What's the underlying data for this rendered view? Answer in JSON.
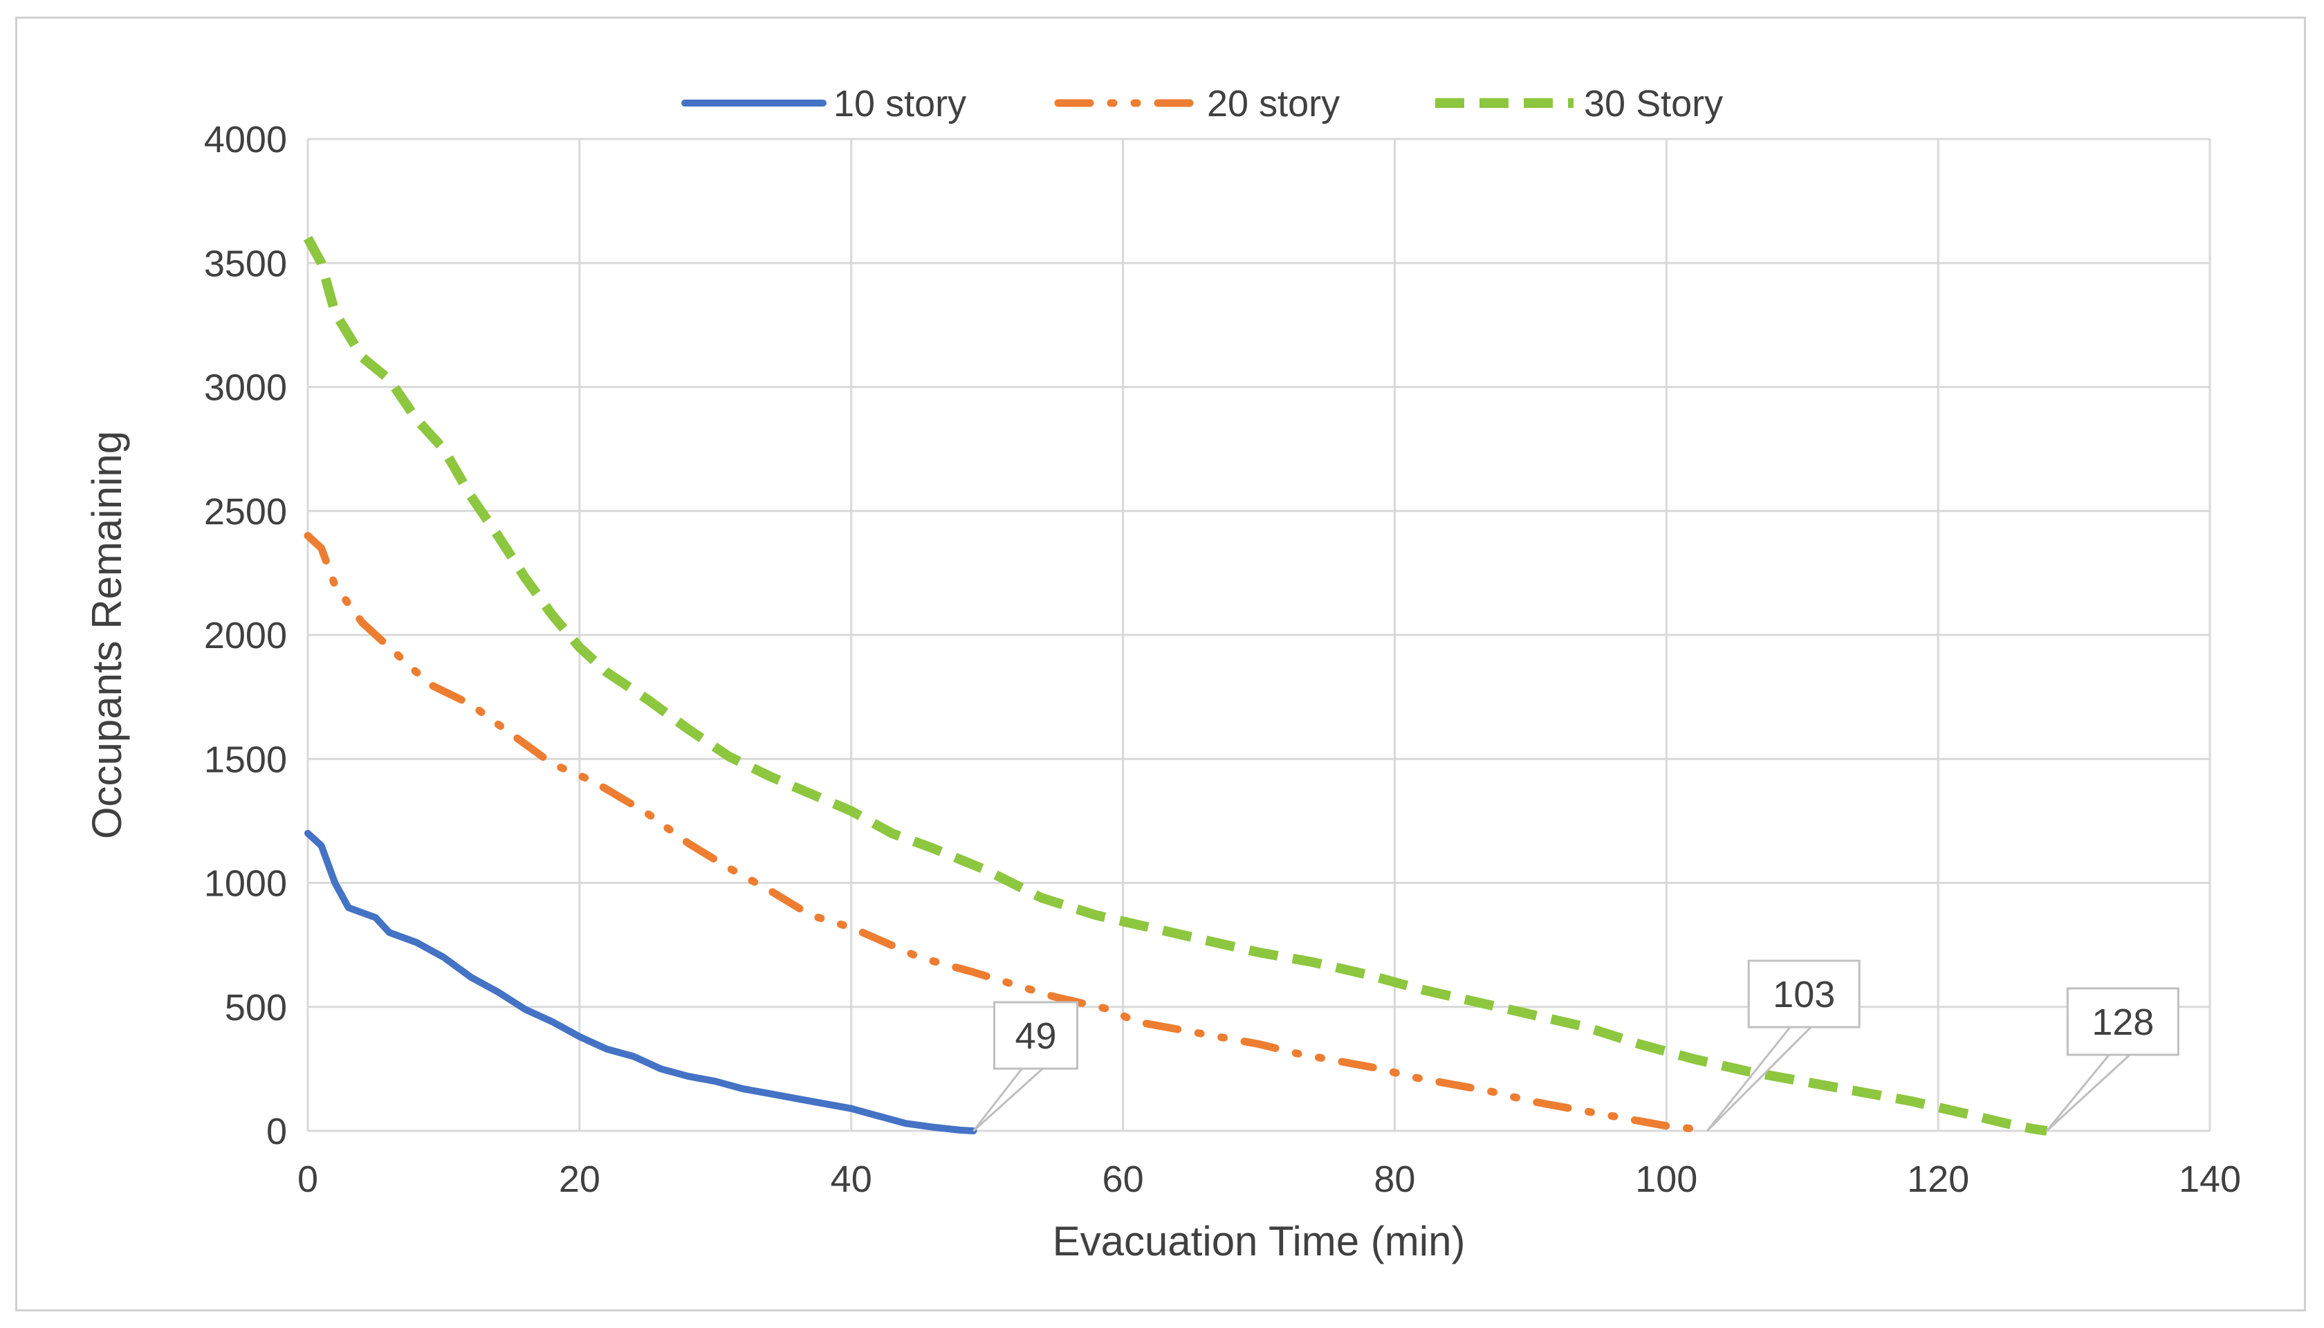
{
  "chart_data": {
    "type": "line",
    "title": "",
    "xlabel": "Evacuation Time (min)",
    "ylabel": "Occupants Remaining",
    "xlim": [
      0,
      140
    ],
    "ylim": [
      0,
      4000
    ],
    "x_ticks": [
      "0",
      "20",
      "40",
      "60",
      "80",
      "100",
      "120",
      "140"
    ],
    "y_ticks": [
      "0",
      "500",
      "1000",
      "1500",
      "2000",
      "2500",
      "3000",
      "3500",
      "4000"
    ],
    "grid": true,
    "legend_position": "top-center",
    "series": [
      {
        "name": "10 story",
        "color": "#4472c4",
        "style": "solid",
        "points": [
          [
            0,
            1200
          ],
          [
            1,
            1150
          ],
          [
            2,
            1000
          ],
          [
            3,
            900
          ],
          [
            5,
            860
          ],
          [
            6,
            800
          ],
          [
            8,
            760
          ],
          [
            10,
            700
          ],
          [
            12,
            620
          ],
          [
            14,
            560
          ],
          [
            16,
            490
          ],
          [
            18,
            440
          ],
          [
            20,
            380
          ],
          [
            22,
            330
          ],
          [
            24,
            300
          ],
          [
            26,
            250
          ],
          [
            28,
            220
          ],
          [
            30,
            200
          ],
          [
            32,
            170
          ],
          [
            34,
            150
          ],
          [
            36,
            130
          ],
          [
            38,
            110
          ],
          [
            40,
            90
          ],
          [
            42,
            60
          ],
          [
            44,
            30
          ],
          [
            46,
            15
          ],
          [
            48,
            3
          ],
          [
            49,
            0
          ]
        ]
      },
      {
        "name": "20 story",
        "color": "#ed7d31",
        "style": "dash-dot",
        "points": [
          [
            0,
            2400
          ],
          [
            1,
            2350
          ],
          [
            2,
            2200
          ],
          [
            4,
            2050
          ],
          [
            7,
            1900
          ],
          [
            9,
            1800
          ],
          [
            12,
            1720
          ],
          [
            15,
            1600
          ],
          [
            18,
            1480
          ],
          [
            21,
            1410
          ],
          [
            25,
            1280
          ],
          [
            28,
            1160
          ],
          [
            31,
            1060
          ],
          [
            34,
            970
          ],
          [
            37,
            870
          ],
          [
            40,
            820
          ],
          [
            45,
            700
          ],
          [
            49,
            640
          ],
          [
            52,
            590
          ],
          [
            55,
            540
          ],
          [
            59,
            490
          ],
          [
            61,
            440
          ],
          [
            64,
            410
          ],
          [
            67,
            380
          ],
          [
            70,
            350
          ],
          [
            73,
            310
          ],
          [
            76,
            280
          ],
          [
            79,
            250
          ],
          [
            81,
            220
          ],
          [
            84,
            190
          ],
          [
            87,
            160
          ],
          [
            90,
            120
          ],
          [
            92,
            100
          ],
          [
            95,
            70
          ],
          [
            98,
            40
          ],
          [
            100,
            20
          ],
          [
            102,
            8
          ],
          [
            103,
            0
          ]
        ]
      },
      {
        "name": "30 Story",
        "color": "#8dc63f",
        "style": "dashed",
        "points": [
          [
            0,
            3600
          ],
          [
            1,
            3500
          ],
          [
            2,
            3300
          ],
          [
            4,
            3120
          ],
          [
            6,
            3030
          ],
          [
            8,
            2870
          ],
          [
            10,
            2750
          ],
          [
            12,
            2560
          ],
          [
            14,
            2400
          ],
          [
            16,
            2230
          ],
          [
            18,
            2080
          ],
          [
            20,
            1950
          ],
          [
            22,
            1850
          ],
          [
            25,
            1740
          ],
          [
            28,
            1620
          ],
          [
            31,
            1510
          ],
          [
            34,
            1430
          ],
          [
            37,
            1360
          ],
          [
            40,
            1290
          ],
          [
            43,
            1200
          ],
          [
            46,
            1140
          ],
          [
            50,
            1050
          ],
          [
            54,
            940
          ],
          [
            58,
            870
          ],
          [
            62,
            820
          ],
          [
            66,
            770
          ],
          [
            70,
            720
          ],
          [
            74,
            680
          ],
          [
            78,
            630
          ],
          [
            82,
            570
          ],
          [
            86,
            520
          ],
          [
            90,
            470
          ],
          [
            94,
            420
          ],
          [
            98,
            350
          ],
          [
            102,
            290
          ],
          [
            106,
            240
          ],
          [
            110,
            200
          ],
          [
            114,
            160
          ],
          [
            118,
            120
          ],
          [
            122,
            70
          ],
          [
            125,
            30
          ],
          [
            127,
            8
          ],
          [
            128,
            0
          ]
        ]
      }
    ],
    "annotations": [
      {
        "text": "49",
        "x": 49,
        "y": 0
      },
      {
        "text": "103",
        "x": 103,
        "y": 0
      },
      {
        "text": "128",
        "x": 128,
        "y": 0
      }
    ]
  }
}
